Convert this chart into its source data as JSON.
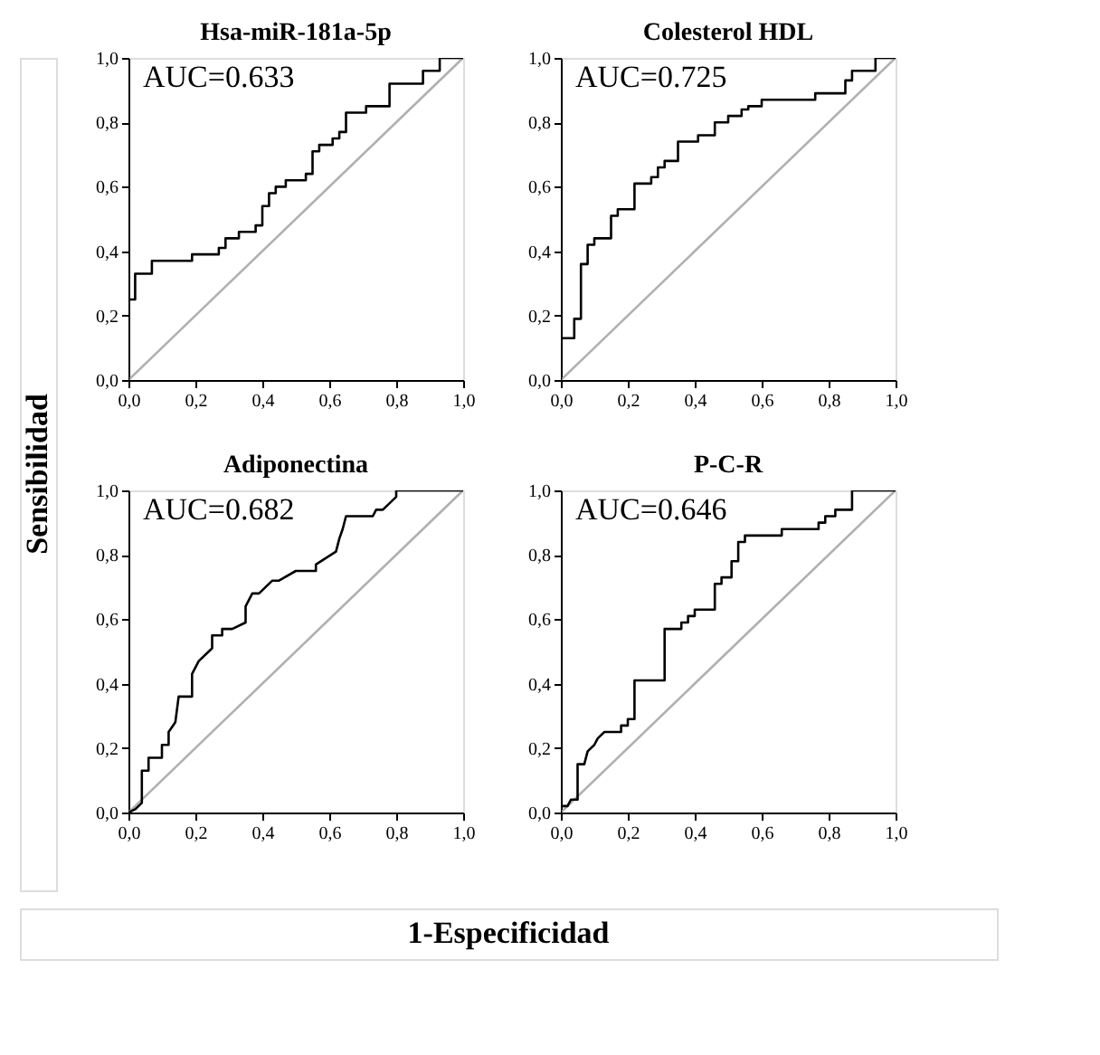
{
  "chart_data": [
    {
      "type": "line",
      "title": "Hsa-miR-181a-5p",
      "xlabel": "1-Especificidad",
      "ylabel": "Sensibilidad",
      "annotations": [
        "AUC=0.633"
      ],
      "xlim": [
        0,
        1
      ],
      "ylim": [
        0,
        1
      ],
      "xticks": [
        {
          "value": 0,
          "label": "0,0"
        },
        {
          "value": 0.2,
          "label": "0,2"
        },
        {
          "value": 0.4,
          "label": "0,4"
        },
        {
          "value": 0.6,
          "label": "0,6"
        },
        {
          "value": 0.8,
          "label": "0,8"
        },
        {
          "value": 1,
          "label": "1,0"
        }
      ],
      "yticks": [
        {
          "value": 0,
          "label": "0,0"
        },
        {
          "value": 0.2,
          "label": "0,2"
        },
        {
          "value": 0.4,
          "label": "0,4"
        },
        {
          "value": 0.6,
          "label": "0,6"
        },
        {
          "value": 0.8,
          "label": "0,8"
        },
        {
          "value": 1,
          "label": "1,0"
        }
      ],
      "grid": false,
      "series": [
        {
          "color": "#b0b0b0",
          "x": [
            0,
            1
          ],
          "values": [
            0,
            1
          ]
        },
        {
          "color": "#000000",
          "x": [
            0,
            0,
            0.02,
            0.02,
            0.07,
            0.07,
            0.19,
            0.19,
            0.27,
            0.27,
            0.29,
            0.29,
            0.33,
            0.33,
            0.38,
            0.38,
            0.4,
            0.4,
            0.42,
            0.42,
            0.44,
            0.44,
            0.47,
            0.47,
            0.53,
            0.53,
            0.55,
            0.55,
            0.57,
            0.57,
            0.61,
            0.61,
            0.63,
            0.63,
            0.65,
            0.65,
            0.71,
            0.71,
            0.78,
            0.78,
            0.88,
            0.88,
            0.93,
            0.93,
            1
          ],
          "values": [
            0,
            0.25,
            0.25,
            0.33,
            0.33,
            0.37,
            0.37,
            0.39,
            0.39,
            0.41,
            0.41,
            0.44,
            0.44,
            0.46,
            0.46,
            0.48,
            0.48,
            0.54,
            0.54,
            0.58,
            0.58,
            0.6,
            0.6,
            0.62,
            0.62,
            0.64,
            0.64,
            0.71,
            0.71,
            0.73,
            0.73,
            0.75,
            0.75,
            0.77,
            0.77,
            0.83,
            0.83,
            0.85,
            0.85,
            0.92,
            0.92,
            0.96,
            0.96,
            1,
            1
          ]
        }
      ]
    },
    {
      "type": "line",
      "title": "Colesterol HDL",
      "annotations": [
        "AUC=0.725"
      ],
      "xlim": [
        0,
        1
      ],
      "ylim": [
        0,
        1
      ],
      "xticks": [
        {
          "value": 0,
          "label": "0,0"
        },
        {
          "value": 0.2,
          "label": "0,2"
        },
        {
          "value": 0.4,
          "label": "0,4"
        },
        {
          "value": 0.6,
          "label": "0,6"
        },
        {
          "value": 0.8,
          "label": "0,8"
        },
        {
          "value": 1,
          "label": "1,0"
        }
      ],
      "yticks": [
        {
          "value": 0,
          "label": "0,0"
        },
        {
          "value": 0.2,
          "label": "0,2"
        },
        {
          "value": 0.4,
          "label": "0,4"
        },
        {
          "value": 0.6,
          "label": "0,6"
        },
        {
          "value": 0.8,
          "label": "0,8"
        },
        {
          "value": 1,
          "label": "1,0"
        }
      ],
      "grid": false,
      "series": [
        {
          "color": "#b0b0b0",
          "x": [
            0,
            1
          ],
          "values": [
            0,
            1
          ]
        },
        {
          "color": "#000000",
          "x": [
            0,
            0,
            0.04,
            0.04,
            0.06,
            0.06,
            0.08,
            0.08,
            0.1,
            0.1,
            0.15,
            0.15,
            0.17,
            0.17,
            0.22,
            0.22,
            0.27,
            0.27,
            0.29,
            0.29,
            0.31,
            0.31,
            0.35,
            0.35,
            0.41,
            0.41,
            0.46,
            0.46,
            0.5,
            0.5,
            0.54,
            0.54,
            0.56,
            0.56,
            0.6,
            0.6,
            0.76,
            0.76,
            0.85,
            0.85,
            0.87,
            0.87,
            0.94,
            0.94,
            1
          ],
          "values": [
            0,
            0.13,
            0.13,
            0.19,
            0.19,
            0.36,
            0.36,
            0.42,
            0.42,
            0.44,
            0.44,
            0.51,
            0.51,
            0.53,
            0.53,
            0.61,
            0.61,
            0.63,
            0.63,
            0.66,
            0.66,
            0.68,
            0.68,
            0.74,
            0.74,
            0.76,
            0.76,
            0.8,
            0.8,
            0.82,
            0.82,
            0.84,
            0.84,
            0.85,
            0.85,
            0.87,
            0.87,
            0.89,
            0.89,
            0.93,
            0.93,
            0.96,
            0.96,
            1,
            1
          ]
        }
      ]
    },
    {
      "type": "line",
      "title": "Adiponectina",
      "annotations": [
        "AUC=0.682"
      ],
      "xlim": [
        0,
        1
      ],
      "ylim": [
        0,
        1
      ],
      "xticks": [
        {
          "value": 0,
          "label": "0,0"
        },
        {
          "value": 0.2,
          "label": "0,2"
        },
        {
          "value": 0.4,
          "label": "0,4"
        },
        {
          "value": 0.6,
          "label": "0,6"
        },
        {
          "value": 0.8,
          "label": "0,8"
        },
        {
          "value": 1,
          "label": "1,0"
        }
      ],
      "yticks": [
        {
          "value": 0,
          "label": "0,0"
        },
        {
          "value": 0.2,
          "label": "0,2"
        },
        {
          "value": 0.4,
          "label": "0,4"
        },
        {
          "value": 0.6,
          "label": "0,6"
        },
        {
          "value": 0.8,
          "label": "0,8"
        },
        {
          "value": 1,
          "label": "1,0"
        }
      ],
      "grid": false,
      "series": [
        {
          "color": "#b0b0b0",
          "x": [
            0,
            1
          ],
          "values": [
            0,
            1
          ]
        },
        {
          "color": "#000000",
          "x": [
            0,
            0.02,
            0.04,
            0.04,
            0.06,
            0.06,
            0.1,
            0.1,
            0.12,
            0.12,
            0.14,
            0.15,
            0.19,
            0.19,
            0.21,
            0.25,
            0.25,
            0.28,
            0.28,
            0.31,
            0.35,
            0.35,
            0.37,
            0.39,
            0.43,
            0.45,
            0.5,
            0.56,
            0.56,
            0.62,
            0.63,
            0.64,
            0.65,
            0.73,
            0.74,
            0.76,
            0.8,
            0.8,
            1
          ],
          "values": [
            0,
            0.01,
            0.03,
            0.13,
            0.13,
            0.17,
            0.17,
            0.21,
            0.21,
            0.25,
            0.28,
            0.36,
            0.36,
            0.43,
            0.47,
            0.51,
            0.55,
            0.55,
            0.57,
            0.57,
            0.59,
            0.64,
            0.68,
            0.68,
            0.72,
            0.72,
            0.75,
            0.75,
            0.77,
            0.81,
            0.85,
            0.88,
            0.92,
            0.92,
            0.94,
            0.94,
            0.98,
            1,
            1
          ]
        }
      ]
    },
    {
      "type": "line",
      "title": "P-C-R",
      "annotations": [
        "AUC=0.646"
      ],
      "xlim": [
        0,
        1
      ],
      "ylim": [
        0,
        1
      ],
      "xticks": [
        {
          "value": 0,
          "label": "0,0"
        },
        {
          "value": 0.2,
          "label": "0,2"
        },
        {
          "value": 0.4,
          "label": "0,4"
        },
        {
          "value": 0.6,
          "label": "0,6"
        },
        {
          "value": 0.8,
          "label": "0,8"
        },
        {
          "value": 1,
          "label": "1,0"
        }
      ],
      "yticks": [
        {
          "value": 0,
          "label": "0,0"
        },
        {
          "value": 0.2,
          "label": "0,2"
        },
        {
          "value": 0.4,
          "label": "0,4"
        },
        {
          "value": 0.6,
          "label": "0,6"
        },
        {
          "value": 0.8,
          "label": "0,8"
        },
        {
          "value": 1,
          "label": "1,0"
        }
      ],
      "grid": false,
      "series": [
        {
          "color": "#b0b0b0",
          "x": [
            0,
            1
          ],
          "values": [
            0,
            1
          ]
        },
        {
          "color": "#000000",
          "x": [
            0,
            0,
            0.02,
            0.03,
            0.05,
            0.05,
            0.07,
            0.08,
            0.1,
            0.11,
            0.13,
            0.18,
            0.18,
            0.2,
            0.2,
            0.22,
            0.22,
            0.31,
            0.31,
            0.36,
            0.36,
            0.38,
            0.38,
            0.4,
            0.4,
            0.46,
            0.46,
            0.48,
            0.48,
            0.51,
            0.51,
            0.53,
            0.53,
            0.55,
            0.55,
            0.66,
            0.66,
            0.77,
            0.77,
            0.79,
            0.79,
            0.82,
            0.82,
            0.87,
            0.87,
            1
          ],
          "values": [
            0,
            0.02,
            0.02,
            0.04,
            0.04,
            0.15,
            0.15,
            0.19,
            0.21,
            0.23,
            0.25,
            0.25,
            0.27,
            0.27,
            0.29,
            0.29,
            0.41,
            0.41,
            0.57,
            0.57,
            0.59,
            0.59,
            0.61,
            0.61,
            0.63,
            0.63,
            0.71,
            0.71,
            0.73,
            0.73,
            0.78,
            0.78,
            0.84,
            0.84,
            0.86,
            0.86,
            0.88,
            0.88,
            0.9,
            0.9,
            0.92,
            0.92,
            0.94,
            0.94,
            1,
            1
          ]
        }
      ]
    }
  ]
}
